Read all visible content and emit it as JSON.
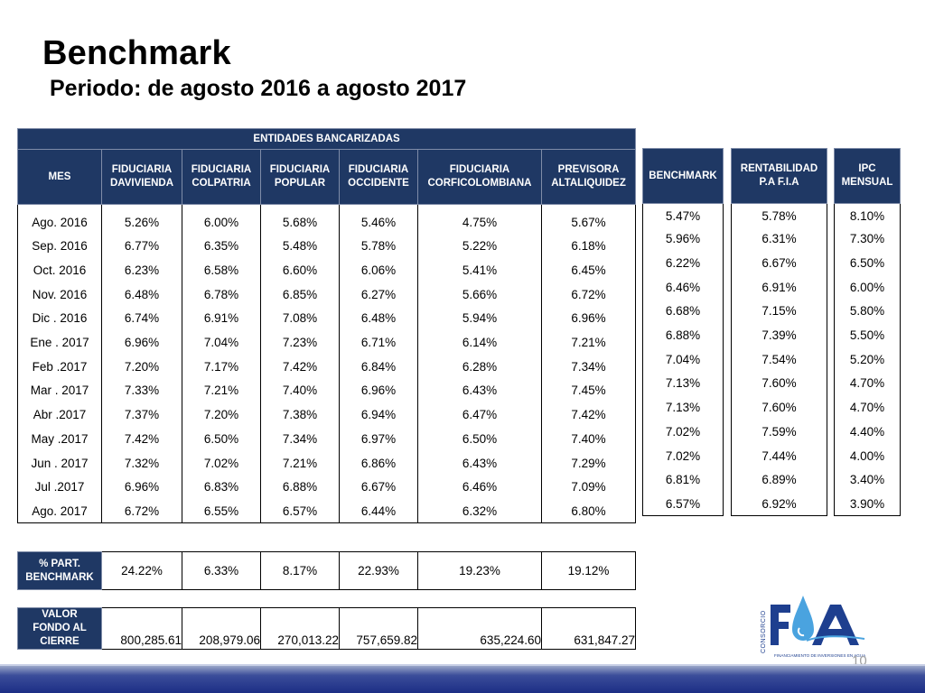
{
  "title": "Benchmark",
  "subtitle": "Periodo: de agosto 2016 a agosto 2017",
  "main": {
    "group_header": "ENTIDADES BANCARIZADAS",
    "columns": [
      "MES",
      "FIDUCIARIA\nDAVIVIENDA",
      "FIDUCIARIA\nCOLPATRIA",
      "FIDUCIARIA\nPOPULAR",
      "FIDUCIARIA\nOCCIDENTE",
      "FIDUCIARIA\nCORFICOLOMBIANA",
      "PREVISORA\nALTALIQUIDEZ"
    ],
    "rows": [
      [
        "Ago. 2016",
        "5.26%",
        "6.00%",
        "5.68%",
        "5.46%",
        "4.75%",
        "5.67%"
      ],
      [
        "Sep. 2016",
        "6.77%",
        "6.35%",
        "5.48%",
        "5.78%",
        "5.22%",
        "6.18%"
      ],
      [
        "Oct. 2016",
        "6.23%",
        "6.58%",
        "6.60%",
        "6.06%",
        "5.41%",
        "6.45%"
      ],
      [
        "Nov. 2016",
        "6.48%",
        "6.78%",
        "6.85%",
        "6.27%",
        "5.66%",
        "6.72%"
      ],
      [
        "Dic . 2016",
        "6.74%",
        "6.91%",
        "7.08%",
        "6.48%",
        "5.94%",
        "6.96%"
      ],
      [
        "Ene . 2017",
        "6.96%",
        "7.04%",
        "7.23%",
        "6.71%",
        "6.14%",
        "7.21%"
      ],
      [
        "Feb .2017",
        "7.20%",
        "7.17%",
        "7.42%",
        "6.84%",
        "6.28%",
        "7.34%"
      ],
      [
        "Mar . 2017",
        "7.33%",
        "7.21%",
        "7.40%",
        "6.96%",
        "6.43%",
        "7.45%"
      ],
      [
        "Abr .2017",
        "7.37%",
        "7.20%",
        "7.38%",
        "6.94%",
        "6.47%",
        "7.42%"
      ],
      [
        "May .2017",
        "7.42%",
        "6.50%",
        "7.34%",
        "6.97%",
        "6.50%",
        "7.40%"
      ],
      [
        "Jun . 2017",
        "7.32%",
        "7.02%",
        "7.21%",
        "6.86%",
        "6.43%",
        "7.29%"
      ],
      [
        "Jul .2017",
        "6.96%",
        "6.83%",
        "6.88%",
        "6.67%",
        "6.46%",
        "7.09%"
      ],
      [
        "Ago.  2017",
        "6.72%",
        "6.55%",
        "6.57%",
        "6.44%",
        "6.32%",
        "6.80%"
      ]
    ]
  },
  "benchmark": {
    "header": "BENCHMARK",
    "values": [
      "5.47%",
      "5.96%",
      "6.22%",
      "6.46%",
      "6.68%",
      "6.88%",
      "7.04%",
      "7.13%",
      "7.13%",
      "7.02%",
      "7.02%",
      "6.81%",
      "6.57%"
    ]
  },
  "rentabilidad": {
    "header": "RENTABILIDAD\nP.A F.I.A",
    "values": [
      "5.78%",
      "6.31%",
      "6.67%",
      "6.91%",
      "7.15%",
      "7.39%",
      "7.54%",
      "7.60%",
      "7.60%",
      "7.59%",
      "7.44%",
      "6.89%",
      "6.92%"
    ]
  },
  "ipc": {
    "header": "IPC\nMENSUAL",
    "values": [
      "8.10%",
      "7.30%",
      "6.50%",
      "6.00%",
      "5.80%",
      "5.50%",
      "5.20%",
      "4.70%",
      "4.70%",
      "4.40%",
      "4.00%",
      "3.40%",
      "3.90%"
    ]
  },
  "participacion": {
    "label": "% PART.\nBENCHMARK",
    "values": [
      "24.22%",
      "6.33%",
      "8.17%",
      "22.93%",
      "19.23%",
      "19.12%"
    ]
  },
  "valor_fondo": {
    "label": "VALOR\nFONDO AL\nCIERRE",
    "values": [
      "800,285.61",
      "208,979.06",
      "270,013.22",
      "757,659.82",
      "635,224.60",
      "631,847.27"
    ]
  },
  "logo": {
    "brand": "FIA",
    "vertical_text": "CONSORCIO",
    "tagline": "FINANCIAMIENTO DE INVERSIONES EN AGUA"
  },
  "page_number": "10",
  "colors": {
    "header_bg": "#1f3864",
    "header_text": "#ffffff",
    "logo_blue": "#1e3f8f",
    "logo_drop": "#4aa3df",
    "footer_bar": "#1c2e85"
  }
}
